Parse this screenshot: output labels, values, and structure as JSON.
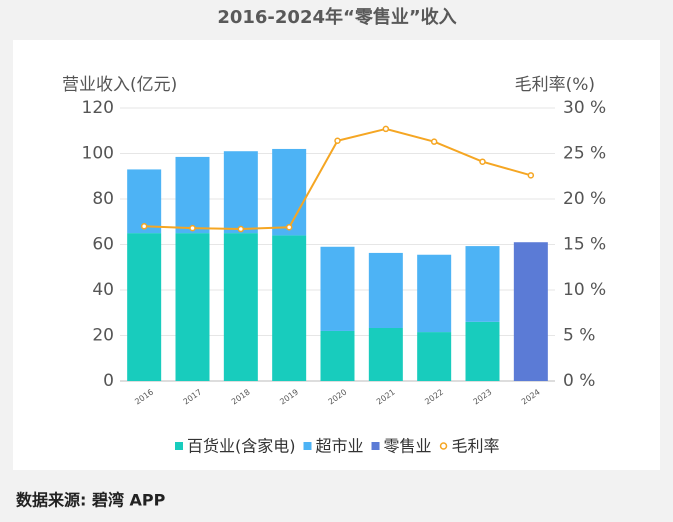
{
  "chart_data": {
    "type": "bar-line",
    "title": "2016-2024年“零售业”收入",
    "y_label": "营业收入(亿元)",
    "y2_label": "毛利率(%)",
    "categories": [
      "2016",
      "2017",
      "2018",
      "2019",
      "2020",
      "2021",
      "2022",
      "2023",
      "2024"
    ],
    "series": [
      {
        "name": "百货业(含家电)",
        "type": "bar",
        "color": "#18ccbd",
        "values": [
          65,
          65,
          65,
          64,
          22,
          23.3,
          21.5,
          26,
          null
        ]
      },
      {
        "name": "超市业",
        "type": "bar",
        "color": "#4db3f5",
        "values": [
          28,
          33.5,
          36,
          38,
          37,
          33,
          34,
          33.3,
          null
        ]
      },
      {
        "name": "零售业",
        "type": "bar",
        "color": "#5b7bd6",
        "values": [
          null,
          null,
          null,
          null,
          null,
          null,
          null,
          null,
          61
        ]
      },
      {
        "name": "毛利率",
        "type": "line",
        "axis": "y2",
        "color": "#f5a623",
        "values": [
          17.0,
          16.8,
          16.7,
          16.9,
          26.4,
          27.7,
          26.3,
          24.1,
          22.6
        ]
      }
    ],
    "ylim": [
      0,
      120
    ],
    "yticks": [
      0,
      20,
      40,
      60,
      80,
      100,
      120
    ],
    "y2lim": [
      0,
      30
    ],
    "y2ticks": [
      {
        "value": 0,
        "label": "0 %"
      },
      {
        "value": 5,
        "label": "5 %"
      },
      {
        "value": 10,
        "label": "10 %"
      },
      {
        "value": 15,
        "label": "15 %"
      },
      {
        "value": 20,
        "label": "20 %"
      },
      {
        "value": 25,
        "label": "25 %"
      },
      {
        "value": 30,
        "label": "30 %"
      }
    ],
    "grid": true,
    "source": "数据来源: 碧湾 APP"
  }
}
